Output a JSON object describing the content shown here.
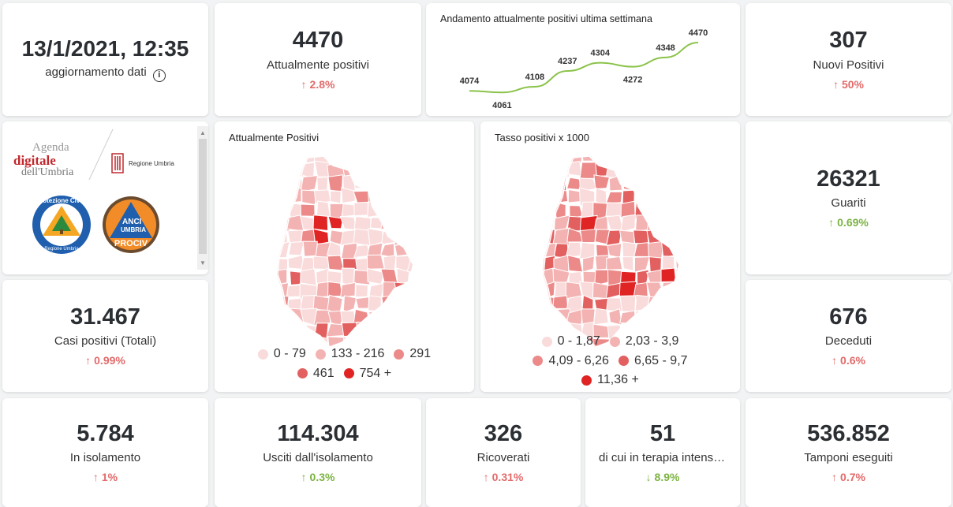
{
  "update": {
    "datetime": "13/1/2021, 12:35",
    "label": "aggiornamento dati"
  },
  "positivi": {
    "value": "4470",
    "label": "Attualmente positivi",
    "delta": "2.8%"
  },
  "trend": {
    "title": "Andamento attualmente positivi ultima settimana",
    "chart_data": {
      "type": "line",
      "values": [
        4074,
        4061,
        4108,
        4237,
        4304,
        4272,
        4348,
        4470
      ],
      "labels": [
        "4074",
        "4061",
        "4108",
        "4237",
        "4304",
        "4272",
        "4348",
        "4470"
      ],
      "line_color": "#8bc34a"
    }
  },
  "nuovi": {
    "value": "307",
    "label": "Nuovi Positivi",
    "delta": "50%"
  },
  "logos": {
    "agenda_line1": "Agenda",
    "agenda_line2": "digitale",
    "agenda_line3": "dell'Umbria",
    "regione": "Regione Umbria",
    "protezione": "Protezione Civile",
    "protezione_sub": "Regione Umbria",
    "anci": "ANCI",
    "anci_sub": "UMBRIA",
    "prociv": "PROCIV"
  },
  "map1": {
    "title": "Attualmente Positivi",
    "legend": [
      {
        "label": "0 - 79",
        "color": "#fadbdb"
      },
      {
        "label": "133 - 216",
        "color": "#f4b3b3"
      },
      {
        "label": "291",
        "color": "#ec8a8a"
      },
      {
        "label": "461",
        "color": "#e36060"
      },
      {
        "label": "754 +",
        "color": "#e02424"
      }
    ]
  },
  "map2": {
    "title": "Tasso positivi x 1000",
    "legend": [
      {
        "label": "0 - 1,87",
        "color": "#fadbdb"
      },
      {
        "label": "2,03 - 3,9",
        "color": "#f4b3b3"
      },
      {
        "label": "4,09 - 6,26",
        "color": "#ec8a8a"
      },
      {
        "label": "6,65 - 9,7",
        "color": "#e36060"
      },
      {
        "label": "11,36 +",
        "color": "#e02424"
      }
    ]
  },
  "guariti": {
    "value": "26321",
    "label": "Guariti",
    "delta": "0.69%"
  },
  "totali": {
    "value": "31.467",
    "label": "Casi positivi (Totali)",
    "delta": "0.99%"
  },
  "deceduti": {
    "value": "676",
    "label": "Deceduti",
    "delta": "0.6%"
  },
  "isolamento": {
    "value": "5.784",
    "label": "In isolamento",
    "delta": "1%"
  },
  "usciti": {
    "value": "114.304",
    "label": "Usciti dall'isolamento",
    "delta": "0.3%"
  },
  "ricoverati": {
    "value": "326",
    "label": "Ricoverati",
    "delta": "0.31%"
  },
  "terapia": {
    "value": "51",
    "label": "di cui in terapia intensiva",
    "delta": "8.9%"
  },
  "tamponi": {
    "value": "536.852",
    "label": "Tamponi eseguiti",
    "delta": "0.7%"
  }
}
